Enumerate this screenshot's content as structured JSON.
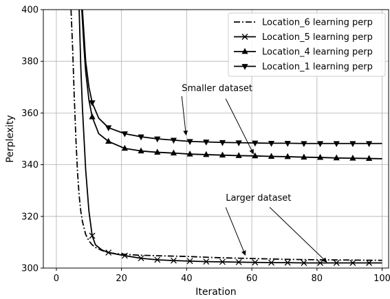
{
  "chart_data": {
    "type": "line",
    "title": "",
    "xlabel": "Iteration",
    "ylabel": "Perplexity",
    "xlim": [
      -4,
      102
    ],
    "ylim": [
      300,
      400
    ],
    "xticks": [
      0,
      20,
      40,
      60,
      80,
      100
    ],
    "yticks": [
      300,
      320,
      340,
      360,
      380,
      400
    ],
    "grid": true,
    "legend_position": "top-right",
    "series": [
      {
        "name": "Location_6 learning perp",
        "line_style": "dashdot",
        "marker": "none",
        "color": "#000000",
        "x": [
          4.5,
          5,
          5.5,
          6,
          6.5,
          7,
          7.5,
          8,
          9,
          10,
          11,
          12,
          14,
          16,
          18,
          20,
          25,
          30,
          40,
          50,
          60,
          70,
          80,
          90,
          100
        ],
        "y": [
          400,
          385,
          366,
          350,
          337,
          328,
          322,
          318,
          313,
          310.5,
          309,
          308,
          306.8,
          306,
          305.6,
          305.4,
          305,
          304.8,
          304.5,
          304,
          303.7,
          303.4,
          303.2,
          303.1,
          303
        ]
      },
      {
        "name": "Location_5 learning perp",
        "line_style": "solid",
        "marker": "x",
        "color": "#000000",
        "x": [
          7,
          7.5,
          8,
          9,
          10,
          11,
          12,
          14,
          16,
          21,
          26,
          31,
          36,
          41,
          46,
          51,
          56,
          61,
          66,
          71,
          76,
          81,
          86,
          91,
          96,
          100
        ],
        "y": [
          400,
          378,
          362,
          338,
          322,
          312.5,
          309,
          307,
          306,
          304.8,
          303.8,
          303.2,
          302.9,
          302.7,
          302.5,
          302.4,
          302.3,
          302.2,
          302.1,
          302.1,
          302,
          302,
          302,
          302,
          302,
          302
        ],
        "marker_x": [
          11,
          16,
          21,
          26,
          31,
          36,
          41,
          46,
          51,
          56,
          61,
          66,
          71,
          76,
          81,
          86,
          91,
          96
        ]
      },
      {
        "name": "Location_4 learning perp",
        "line_style": "solid",
        "marker": "triangle-up",
        "color": "#000000",
        "x": [
          7.8,
          8,
          8.5,
          9,
          10,
          11,
          13,
          16,
          21,
          26,
          31,
          36,
          41,
          46,
          51,
          56,
          61,
          66,
          71,
          76,
          81,
          86,
          91,
          96,
          100
        ],
        "y": [
          400,
          396,
          385,
          376,
          365,
          358.5,
          352,
          349,
          346.3,
          345.3,
          344.8,
          344.5,
          344.1,
          343.9,
          343.7,
          343.5,
          343.4,
          343.2,
          343.1,
          342.9,
          342.8,
          342.6,
          342.5,
          342.4,
          342.3
        ],
        "marker_x": [
          11,
          16,
          21,
          26,
          31,
          36,
          41,
          46,
          51,
          56,
          61,
          66,
          71,
          76,
          81,
          86,
          91,
          96
        ]
      },
      {
        "name": "Location_1 learning perp",
        "line_style": "solid",
        "marker": "triangle-down",
        "color": "#000000",
        "x": [
          8,
          8.5,
          9,
          10,
          11,
          13,
          16,
          21,
          26,
          31,
          36,
          41,
          46,
          51,
          56,
          61,
          66,
          71,
          76,
          81,
          86,
          91,
          96,
          100
        ],
        "y": [
          400,
          390,
          380,
          370,
          364,
          358,
          354.3,
          352,
          350.8,
          350,
          349.5,
          349,
          348.8,
          348.6,
          348.5,
          348.4,
          348.3,
          348.3,
          348.2,
          348.2,
          348.2,
          348.2,
          348.2,
          348.2
        ],
        "marker_x": [
          11,
          16,
          21,
          26,
          31,
          36,
          41,
          46,
          51,
          56,
          61,
          66,
          71,
          76,
          81,
          86,
          91,
          96
        ]
      }
    ],
    "annotations": [
      {
        "text": "Smaller dataset",
        "text_x": 38.5,
        "text_y": 368.5,
        "arrows": [
          {
            "from": [
              38.5,
              366.5
            ],
            "to": [
              39.8,
              351.5
            ]
          },
          {
            "from": [
              52,
              365.5
            ],
            "to": [
              60.5,
              344.2
            ]
          }
        ]
      },
      {
        "text": "Larger dataset",
        "text_x": 52,
        "text_y": 326,
        "arrows": [
          {
            "from": [
              52,
              323.5
            ],
            "to": [
              58,
              305
            ]
          },
          {
            "from": [
              65.5,
              323.5
            ],
            "to": [
              83,
              302.3
            ]
          }
        ]
      }
    ]
  }
}
